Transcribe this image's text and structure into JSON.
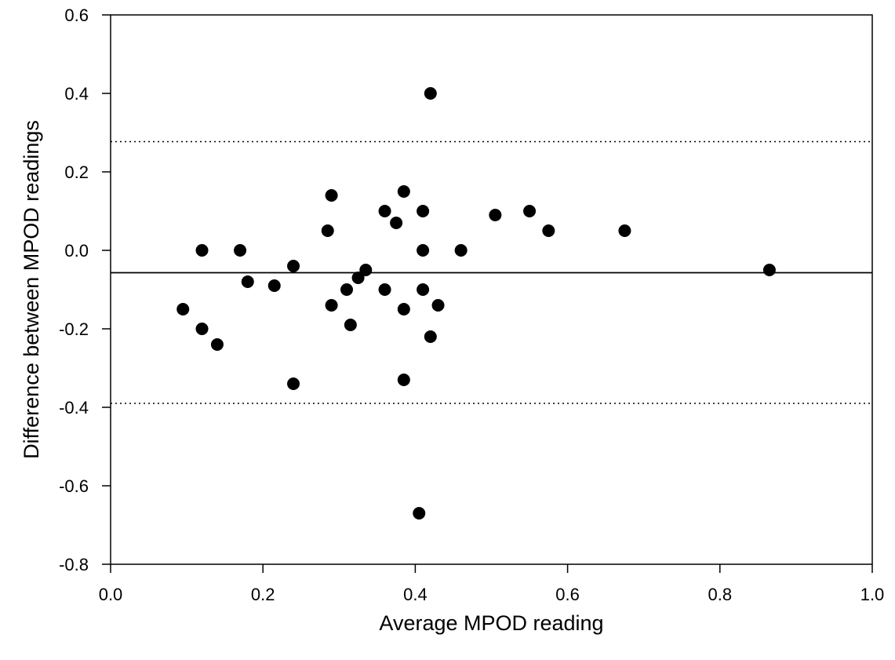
{
  "chart_data": {
    "type": "scatter",
    "title": "",
    "xlabel": "Average MPOD reading",
    "ylabel": "Difference between MPOD readings",
    "xlim": [
      0.0,
      1.0
    ],
    "ylim": [
      -0.8,
      0.6
    ],
    "x_ticks": [
      "0.0",
      "0.2",
      "0.4",
      "0.6",
      "0.8",
      "1.0"
    ],
    "y_ticks": [
      "-0.8",
      "-0.6",
      "-0.4",
      "-0.2",
      "0.0",
      "0.2",
      "0.4",
      "0.6"
    ],
    "grid": false,
    "legend": "none",
    "marker_color": "#000000",
    "reference_lines": [
      {
        "kind": "mean",
        "style": "solid",
        "y": -0.057
      },
      {
        "kind": "upper-limit",
        "style": "dotted",
        "y": 0.277
      },
      {
        "kind": "lower-limit",
        "style": "dotted",
        "y": -0.39
      }
    ],
    "series": [
      {
        "points": [
          {
            "x": 0.095,
            "y": -0.15
          },
          {
            "x": 0.12,
            "y": 0.0
          },
          {
            "x": 0.12,
            "y": -0.2
          },
          {
            "x": 0.14,
            "y": -0.24
          },
          {
            "x": 0.17,
            "y": 0.0
          },
          {
            "x": 0.18,
            "y": -0.08
          },
          {
            "x": 0.215,
            "y": -0.09
          },
          {
            "x": 0.24,
            "y": -0.04
          },
          {
            "x": 0.24,
            "y": -0.34
          },
          {
            "x": 0.285,
            "y": 0.05
          },
          {
            "x": 0.29,
            "y": 0.14
          },
          {
            "x": 0.29,
            "y": -0.14
          },
          {
            "x": 0.31,
            "y": -0.1
          },
          {
            "x": 0.315,
            "y": -0.19
          },
          {
            "x": 0.325,
            "y": -0.07
          },
          {
            "x": 0.335,
            "y": -0.05
          },
          {
            "x": 0.36,
            "y": 0.1
          },
          {
            "x": 0.36,
            "y": -0.1
          },
          {
            "x": 0.375,
            "y": 0.07
          },
          {
            "x": 0.385,
            "y": 0.15
          },
          {
            "x": 0.385,
            "y": -0.15
          },
          {
            "x": 0.385,
            "y": -0.33
          },
          {
            "x": 0.405,
            "y": -0.67
          },
          {
            "x": 0.41,
            "y": 0.1
          },
          {
            "x": 0.41,
            "y": 0.0
          },
          {
            "x": 0.41,
            "y": -0.1
          },
          {
            "x": 0.42,
            "y": 0.4
          },
          {
            "x": 0.42,
            "y": -0.22
          },
          {
            "x": 0.43,
            "y": -0.14
          },
          {
            "x": 0.46,
            "y": 0.0
          },
          {
            "x": 0.505,
            "y": 0.09
          },
          {
            "x": 0.55,
            "y": 0.1
          },
          {
            "x": 0.575,
            "y": 0.05
          },
          {
            "x": 0.675,
            "y": 0.05
          },
          {
            "x": 0.865,
            "y": -0.05
          }
        ]
      }
    ]
  }
}
